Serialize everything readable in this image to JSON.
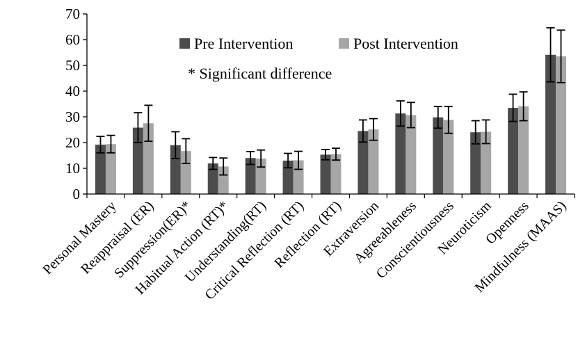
{
  "chart_data": {
    "type": "bar",
    "title": "",
    "xlabel": "",
    "ylabel": "",
    "ylim": [
      0,
      70
    ],
    "yticks": [
      0,
      10,
      20,
      30,
      40,
      50,
      60,
      70
    ],
    "grid": false,
    "error_bars": true,
    "legend_position": "top-center",
    "categories": [
      "Personal Mastery",
      "Reappraisal (ER)",
      "Suppression(ER)*",
      "Habitual Action (RT)*",
      "Understanding(RT)",
      "Critical Reflection (RT)",
      "Reflection (RT)",
      "Extraversion",
      "Agreeableness",
      "Conscientiousness",
      "Neuroticism",
      "Openness",
      "Mindfulness (MAAS)"
    ],
    "series": [
      {
        "name": "Pre Intervention",
        "color": "#4d4d4d",
        "values": [
          19.2,
          25.8,
          19.0,
          11.9,
          14.0,
          13.0,
          15.3,
          24.5,
          31.3,
          29.8,
          24.0,
          33.5,
          54.1
        ],
        "errors": [
          3.2,
          5.8,
          5.2,
          2.3,
          2.5,
          2.8,
          2.0,
          4.3,
          4.9,
          4.2,
          4.5,
          5.3,
          10.5
        ]
      },
      {
        "name": "Post Intervention",
        "color": "#a6a6a6",
        "values": [
          19.4,
          27.5,
          16.7,
          10.7,
          13.8,
          13.1,
          15.5,
          25.1,
          30.7,
          28.8,
          24.2,
          34.1,
          53.5
        ],
        "errors": [
          3.4,
          7.0,
          4.8,
          3.3,
          3.3,
          3.5,
          2.3,
          4.2,
          4.9,
          5.2,
          4.6,
          5.6,
          10.2
        ]
      }
    ],
    "annotation": "* Significant difference"
  }
}
